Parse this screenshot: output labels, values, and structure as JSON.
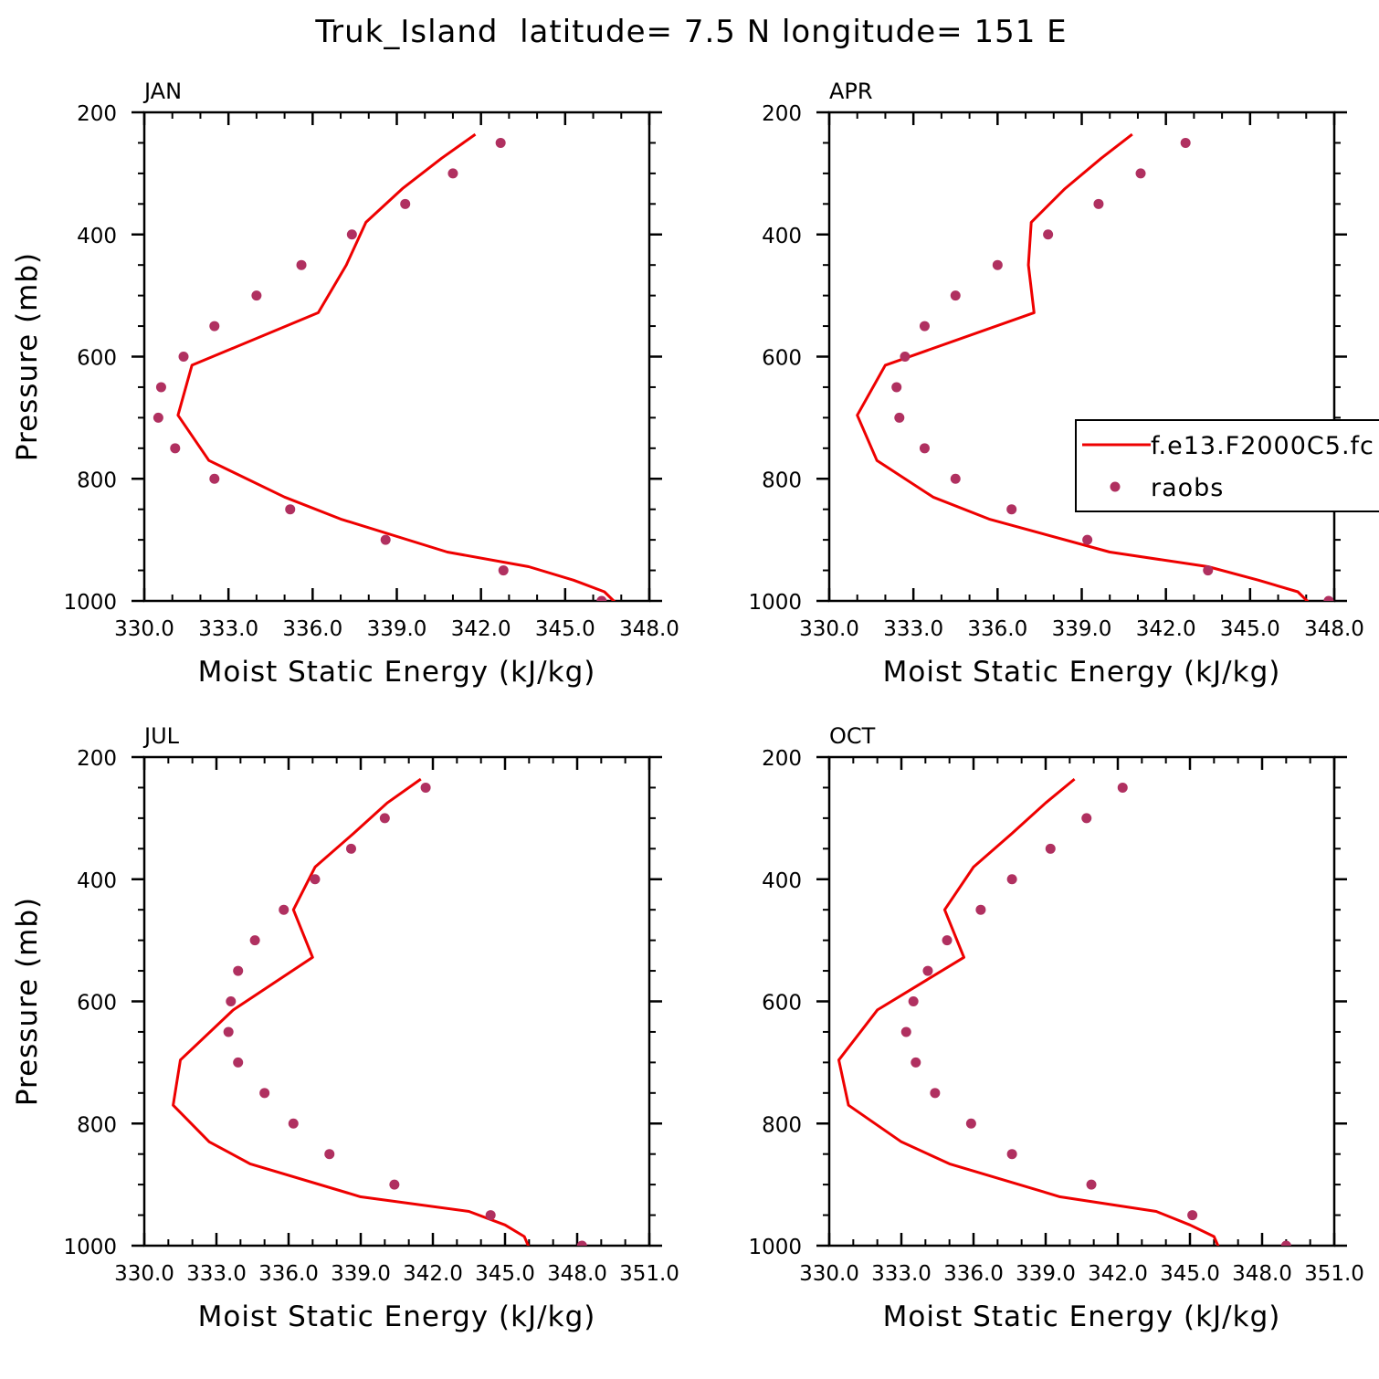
{
  "page": {
    "title": "Truk_Island  latitude= 7.5 N longitude= 151 E"
  },
  "legend": {
    "model_label": "f.e13.F2000C5.fc",
    "obs_label": "raobs"
  },
  "colors": {
    "model_line": "#ee0000",
    "obs_marker": "#b03060",
    "axis": "#000000"
  },
  "chart_data": [
    {
      "type": "line",
      "panel": "JAN",
      "xlabel": "Moist Static Energy (kJ/kg)",
      "ylabel": "Pressure (mb)",
      "xlim": [
        330,
        348
      ],
      "ylim": [
        1000,
        200
      ],
      "x_ticks": [
        330,
        333,
        336,
        339,
        342,
        345,
        348
      ],
      "x_tick_labels": [
        "330.0",
        "333.0",
        "336.0",
        "339.0",
        "342.0",
        "345.0",
        "348.0"
      ],
      "y_ticks": [
        200,
        400,
        600,
        800,
        1000
      ],
      "y_tick_labels": [
        "200",
        "400",
        "600",
        "800",
        "1000"
      ],
      "legend": false,
      "series": [
        {
          "kind": "line",
          "p": [
            236,
            275,
            325,
            380,
            450,
            528,
            614,
            696,
            770,
            830,
            866,
            920,
            944,
            966,
            985,
            1003
          ],
          "mse": [
            341.8,
            340.6,
            339.2,
            337.9,
            337.2,
            336.2,
            331.7,
            331.2,
            332.3,
            335.0,
            337.0,
            340.8,
            343.7,
            345.3,
            346.4,
            346.8
          ]
        },
        {
          "kind": "scatter",
          "p": [
            250,
            300,
            350,
            400,
            450,
            500,
            550,
            600,
            650,
            700,
            750,
            800,
            850,
            900,
            950,
            1000
          ],
          "mse": [
            342.7,
            341.0,
            339.3,
            337.4,
            335.6,
            334.0,
            332.5,
            331.4,
            330.6,
            330.5,
            331.1,
            332.5,
            335.2,
            338.6,
            342.8,
            346.3
          ]
        }
      ]
    },
    {
      "type": "line",
      "panel": "APR",
      "xlabel": "Moist Static Energy (kJ/kg)",
      "ylabel": "",
      "xlim": [
        330,
        348
      ],
      "ylim": [
        1000,
        200
      ],
      "x_ticks": [
        330,
        333,
        336,
        339,
        342,
        345,
        348
      ],
      "x_tick_labels": [
        "330.0",
        "333.0",
        "336.0",
        "339.0",
        "342.0",
        "345.0",
        "348.0"
      ],
      "y_ticks": [
        200,
        400,
        600,
        800,
        1000
      ],
      "y_tick_labels": [
        "200",
        "400",
        "600",
        "800",
        "1000"
      ],
      "legend": true,
      "series": [
        {
          "kind": "line",
          "p": [
            236,
            275,
            325,
            380,
            450,
            528,
            614,
            696,
            770,
            830,
            866,
            920,
            944,
            966,
            985,
            1003
          ],
          "mse": [
            340.8,
            339.7,
            338.4,
            337.2,
            337.1,
            337.3,
            332.0,
            331.0,
            331.7,
            333.7,
            335.7,
            340.0,
            343.5,
            345.3,
            346.7,
            347.1
          ]
        },
        {
          "kind": "scatter",
          "p": [
            250,
            300,
            350,
            400,
            450,
            500,
            550,
            600,
            650,
            700,
            750,
            800,
            850,
            900,
            950,
            1000
          ],
          "mse": [
            342.7,
            341.1,
            339.6,
            337.8,
            336.0,
            334.5,
            333.4,
            332.7,
            332.4,
            332.5,
            333.4,
            334.5,
            336.5,
            339.2,
            343.5,
            347.8
          ]
        }
      ]
    },
    {
      "type": "line",
      "panel": "JUL",
      "xlabel": "Moist Static Energy (kJ/kg)",
      "ylabel": "Pressure (mb)",
      "xlim": [
        330,
        351
      ],
      "ylim": [
        1000,
        200
      ],
      "x_ticks": [
        330,
        333,
        336,
        339,
        342,
        345,
        348,
        351
      ],
      "x_tick_labels": [
        "330.0",
        "333.0",
        "336.0",
        "339.0",
        "342.0",
        "345.0",
        "348.0",
        "351.0"
      ],
      "y_ticks": [
        200,
        400,
        600,
        800,
        1000
      ],
      "y_tick_labels": [
        "200",
        "400",
        "600",
        "800",
        "1000"
      ],
      "legend": false,
      "series": [
        {
          "kind": "line",
          "p": [
            236,
            275,
            325,
            380,
            450,
            528,
            614,
            696,
            770,
            830,
            866,
            920,
            944,
            966,
            985,
            1003
          ],
          "mse": [
            341.5,
            340.1,
            338.7,
            337.1,
            336.2,
            337.0,
            333.7,
            331.5,
            331.2,
            332.7,
            334.4,
            339.0,
            343.5,
            345.0,
            345.8,
            346.0
          ]
        },
        {
          "kind": "scatter",
          "p": [
            250,
            300,
            350,
            400,
            450,
            500,
            550,
            600,
            650,
            700,
            750,
            800,
            850,
            900,
            950,
            1000
          ],
          "mse": [
            341.7,
            340.0,
            338.6,
            337.1,
            335.8,
            334.6,
            333.9,
            333.6,
            333.5,
            333.9,
            335.0,
            336.2,
            337.7,
            340.4,
            344.4,
            348.2
          ]
        }
      ]
    },
    {
      "type": "line",
      "panel": "OCT",
      "xlabel": "Moist Static Energy (kJ/kg)",
      "ylabel": "",
      "xlim": [
        330,
        351
      ],
      "ylim": [
        1000,
        200
      ],
      "x_ticks": [
        330,
        333,
        336,
        339,
        342,
        345,
        348,
        351
      ],
      "x_tick_labels": [
        "330.0",
        "333.0",
        "336.0",
        "339.0",
        "342.0",
        "345.0",
        "348.0",
        "351.0"
      ],
      "y_ticks": [
        200,
        400,
        600,
        800,
        1000
      ],
      "y_tick_labels": [
        "200",
        "400",
        "600",
        "800",
        "1000"
      ],
      "legend": false,
      "series": [
        {
          "kind": "line",
          "p": [
            236,
            275,
            325,
            380,
            450,
            528,
            614,
            696,
            770,
            830,
            866,
            920,
            944,
            966,
            985,
            1003
          ],
          "mse": [
            340.2,
            339.0,
            337.6,
            336.0,
            334.8,
            335.6,
            332.0,
            330.4,
            330.8,
            333.0,
            335.0,
            339.6,
            343.6,
            345.0,
            346.0,
            346.2
          ]
        },
        {
          "kind": "scatter",
          "p": [
            250,
            300,
            350,
            400,
            450,
            500,
            550,
            600,
            650,
            700,
            750,
            800,
            850,
            900,
            950,
            1000
          ],
          "mse": [
            342.2,
            340.7,
            339.2,
            337.6,
            336.3,
            334.9,
            334.1,
            333.5,
            333.2,
            333.6,
            334.4,
            335.9,
            337.6,
            340.9,
            345.1,
            349.0
          ]
        }
      ]
    }
  ]
}
